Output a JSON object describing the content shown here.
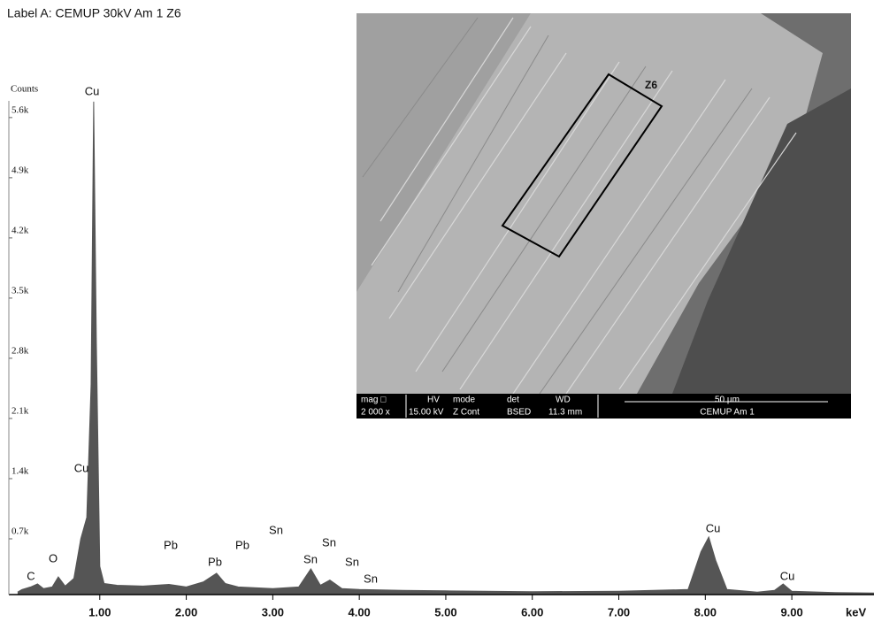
{
  "chart_data": {
    "type": "area",
    "title": "Label A: CEMUP  30kV  Am 1  Z6",
    "y_label": "Counts",
    "x_label": "keV",
    "color": "#555555",
    "x": [
      0.05,
      0.1,
      0.2,
      0.28,
      0.35,
      0.45,
      0.52,
      0.6,
      0.7,
      0.78,
      0.85,
      0.9,
      0.93,
      0.96,
      1.0,
      1.05,
      1.2,
      1.5,
      1.8,
      2.0,
      2.2,
      2.35,
      2.45,
      2.6,
      3.0,
      3.3,
      3.44,
      3.55,
      3.66,
      3.8,
      4.0,
      4.5,
      5.0,
      6.0,
      7.0,
      7.8,
      7.95,
      8.04,
      8.12,
      8.25,
      8.6,
      8.8,
      8.9,
      9.0,
      9.5,
      9.95
    ],
    "values": [
      80,
      110,
      140,
      175,
      120,
      140,
      257,
      150,
      240,
      700,
      950,
      2500,
      5785,
      3000,
      380,
      180,
      160,
      150,
      170,
      140,
      200,
      300,
      180,
      140,
      120,
      140,
      350,
      160,
      220,
      120,
      110,
      100,
      95,
      85,
      90,
      110,
      550,
      720,
      450,
      110,
      80,
      100,
      175,
      90,
      75,
      70
    ],
    "xlim": [
      0,
      9.95
    ],
    "ylim": [
      0,
      6000
    ],
    "xticks": [
      {
        "value": 1,
        "label": "1.00"
      },
      {
        "value": 2,
        "label": "2.00"
      },
      {
        "value": 3,
        "label": "3.00"
      },
      {
        "value": 4,
        "label": "4.00"
      },
      {
        "value": 5,
        "label": "5.00"
      },
      {
        "value": 6,
        "label": "6.00"
      },
      {
        "value": 7,
        "label": "7.00"
      },
      {
        "value": 8,
        "label": "8.00"
      },
      {
        "value": 9,
        "label": "9.00"
      }
    ],
    "yticks": [
      {
        "value": 700,
        "label": "0.7k"
      },
      {
        "value": 1400,
        "label": "1.4k"
      },
      {
        "value": 2100,
        "label": "2.1k"
      },
      {
        "value": 2800,
        "label": "2.8k"
      },
      {
        "value": 3500,
        "label": "3.5k"
      },
      {
        "value": 4200,
        "label": "4.2k"
      },
      {
        "value": 4900,
        "label": "4.9k"
      },
      {
        "value": 5600,
        "label": "5.6k"
      }
    ],
    "annotations": [
      "C",
      "O",
      "Cu",
      "Cu",
      "Pb",
      "Pb",
      "Pb",
      "Sn",
      "Sn",
      "Sn",
      "Sn",
      "Sn",
      "Cu",
      "Cu"
    ]
  },
  "inset": {
    "zone": "Z6",
    "info_row1": [
      "mag □",
      "HV",
      "mode",
      "det",
      "WD"
    ],
    "info_row2": [
      "2 000 x",
      "15.00 kV",
      "Z Cont",
      "BSED",
      "11.3 mm"
    ],
    "scale": "50 µm",
    "label": "CEMUP  Am 1"
  }
}
